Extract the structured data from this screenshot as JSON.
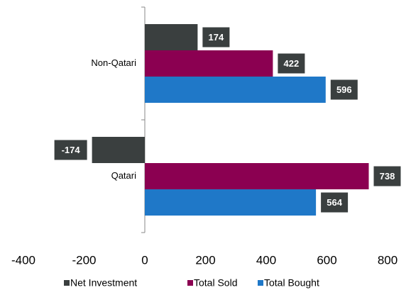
{
  "chart_data": {
    "type": "bar",
    "orientation": "horizontal",
    "categories": [
      "Non-Qatari",
      "Qatari"
    ],
    "series": [
      {
        "name": "Net Investment",
        "color": "#3a3f3f",
        "values": [
          174,
          -174
        ]
      },
      {
        "name": "Total Sold",
        "color": "#8b0051",
        "values": [
          422,
          738
        ]
      },
      {
        "name": "Total Bought",
        "color": "#1f78c8",
        "values": [
          596,
          564
        ]
      }
    ],
    "xlim": [
      -400,
      800
    ],
    "xticks": [
      -400,
      -200,
      0,
      200,
      400,
      600,
      800
    ],
    "data_labels": true,
    "label_color": "#3a3f3f",
    "legend": "bottom"
  }
}
